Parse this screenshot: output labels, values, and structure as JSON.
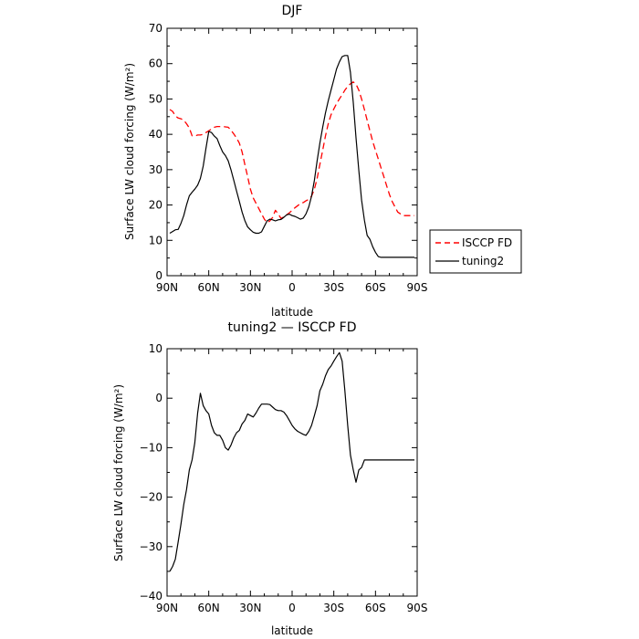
{
  "chart_data": [
    {
      "type": "line",
      "title": "DJF",
      "xlabel": "latitude",
      "ylabel": "Surface LW cloud forcing (W/m²)",
      "xlim": [
        90,
        -90
      ],
      "ylim": [
        0,
        70
      ],
      "xticks": [
        90,
        60,
        30,
        0,
        -30,
        -60,
        -90
      ],
      "xtick_labels": [
        "90N",
        "60N",
        "30N",
        "0",
        "30S",
        "60S",
        "90S"
      ],
      "yticks": [
        0,
        10,
        20,
        30,
        40,
        50,
        60,
        70
      ],
      "ytick_labels": [
        "0",
        "10",
        "20",
        "30",
        "40",
        "50",
        "60",
        "70"
      ],
      "grid": false,
      "legend_position": "outside-right",
      "series": [
        {
          "name": "ISCCP FD",
          "color": "#ff0000",
          "dash": "dashed",
          "x": [
            88,
            86,
            84,
            82,
            80,
            78,
            76,
            74,
            72,
            70,
            68,
            66,
            64,
            62,
            60,
            58,
            56,
            54,
            52,
            50,
            48,
            46,
            44,
            42,
            40,
            38,
            36,
            34,
            32,
            30,
            28,
            26,
            24,
            22,
            20,
            18,
            16,
            14,
            12,
            10,
            8,
            6,
            4,
            2,
            0,
            -2,
            -4,
            -6,
            -8,
            -10,
            -12,
            -14,
            -16,
            -18,
            -20,
            -22,
            -24,
            -26,
            -28,
            -30,
            -32,
            -34,
            -36,
            -38,
            -40,
            -42,
            -44,
            -46,
            -48,
            -50,
            -52,
            -54,
            -56,
            -58,
            -60,
            -62,
            -64,
            -66,
            -68,
            -70,
            -72,
            -74,
            -76,
            -78,
            -80,
            -82,
            -84,
            -86,
            -88
          ],
          "y": [
            47,
            46.5,
            45.2,
            44.6,
            44.4,
            44,
            43,
            41.8,
            39.6,
            39.5,
            39.8,
            39.8,
            40,
            40.5,
            41,
            41.5,
            42,
            42.2,
            42.2,
            42.2,
            42.1,
            42,
            41.2,
            40.1,
            39,
            37.5,
            35,
            31.5,
            28,
            24.5,
            22,
            20.5,
            19,
            17.5,
            16,
            15,
            15.5,
            16.5,
            18.5,
            17.5,
            16.2,
            16.6,
            17.2,
            17.8,
            18.5,
            19.2,
            19.8,
            20.4,
            20.7,
            21.2,
            21.6,
            22.5,
            24.5,
            27.5,
            31.5,
            35.5,
            39.5,
            43,
            45.5,
            47.2,
            48.7,
            50,
            51.2,
            52.5,
            53.6,
            54.3,
            54.8,
            54.2,
            52.5,
            50,
            47,
            44,
            41,
            38,
            35.5,
            33,
            30.5,
            28,
            25.5,
            23,
            21,
            19.5,
            18,
            17.5,
            17,
            17,
            17,
            17,
            17
          ]
        },
        {
          "name": "tuning2",
          "color": "#000000",
          "dash": "solid",
          "x": [
            88,
            86,
            84,
            82,
            80,
            78,
            76,
            74,
            72,
            70,
            68,
            66,
            64,
            62,
            60,
            58,
            56,
            54,
            52,
            50,
            48,
            46,
            44,
            42,
            40,
            38,
            36,
            34,
            32,
            30,
            28,
            26,
            24,
            22,
            20,
            18,
            16,
            14,
            12,
            10,
            8,
            6,
            4,
            2,
            0,
            -2,
            -4,
            -6,
            -8,
            -10,
            -12,
            -14,
            -16,
            -18,
            -20,
            -22,
            -24,
            -26,
            -28,
            -30,
            -32,
            -34,
            -36,
            -38,
            -40,
            -42,
            -44,
            -46,
            -48,
            -50,
            -52,
            -54,
            -56,
            -58,
            -60,
            -62,
            -64,
            -66,
            -68,
            -70,
            -72,
            -74,
            -76,
            -78,
            -80,
            -82,
            -84,
            -86,
            -88
          ],
          "y": [
            12,
            12.5,
            13,
            13.1,
            14.8,
            17,
            20,
            22.6,
            23.6,
            24.5,
            25.6,
            27.5,
            31,
            36,
            40.8,
            40.5,
            39.5,
            38.8,
            36.8,
            35,
            34,
            32.5,
            30,
            27,
            24,
            21,
            18,
            15.6,
            13.8,
            13,
            12.3,
            12,
            12,
            12.4,
            14,
            15.5,
            16,
            15.8,
            15.5,
            15.8,
            15.9,
            16.5,
            17.2,
            17.4,
            17,
            16.8,
            16.4,
            16,
            16.3,
            17.5,
            19.5,
            22.5,
            27,
            32.5,
            37.5,
            42,
            46,
            49.5,
            52.5,
            55.5,
            58.5,
            60.5,
            62,
            62.3,
            62.3,
            57.5,
            49,
            39,
            29.7,
            21.4,
            15.7,
            11.4,
            10.3,
            8.2,
            6.6,
            5.4,
            5.2,
            5.2,
            5.2,
            5.2,
            5.2,
            5.2,
            5.2,
            5.2,
            5.2,
            5.2,
            5.2,
            5.2,
            5.2
          ]
        }
      ]
    },
    {
      "type": "line",
      "title": "tuning2 — ISCCP FD",
      "xlabel": "latitude",
      "ylabel": "Surface LW cloud forcing (W/m²)",
      "xlim": [
        90,
        -90
      ],
      "ylim": [
        -40,
        10
      ],
      "xticks": [
        90,
        60,
        30,
        0,
        -30,
        -60,
        -90
      ],
      "xtick_labels": [
        "90N",
        "60N",
        "30N",
        "0",
        "30S",
        "60S",
        "90S"
      ],
      "yticks": [
        -40,
        -30,
        -20,
        -10,
        0,
        10
      ],
      "ytick_labels": [
        "−40",
        "−30",
        "−20",
        "−10",
        "0",
        "10"
      ],
      "grid": false,
      "series": [
        {
          "color": "#000000",
          "dash": "solid",
          "x": [
            88,
            86,
            84,
            82,
            80,
            78,
            76,
            74,
            72,
            70,
            68,
            66,
            64,
            62,
            60,
            58,
            56,
            54,
            52,
            50,
            48,
            46,
            44,
            42,
            40,
            38,
            36,
            34,
            32,
            30,
            28,
            26,
            24,
            22,
            20,
            18,
            16,
            14,
            12,
            10,
            8,
            6,
            4,
            2,
            0,
            -2,
            -4,
            -6,
            -8,
            -10,
            -12,
            -14,
            -16,
            -18,
            -20,
            -22,
            -24,
            -26,
            -28,
            -30,
            -32,
            -34,
            -36,
            -38,
            -40,
            -42,
            -44,
            -46,
            -48,
            -50,
            -52,
            -54,
            -56,
            -58,
            -60,
            -62,
            -64,
            -66,
            -68,
            -70,
            -72,
            -74,
            -76,
            -78,
            -80,
            -82,
            -84,
            -86,
            -88
          ],
          "y": [
            -35,
            -34,
            -32.5,
            -29,
            -25.5,
            -21.5,
            -18.5,
            -14.5,
            -12.5,
            -9,
            -3,
            1,
            -1.5,
            -2.5,
            -3.2,
            -5.5,
            -7,
            -7.5,
            -7.5,
            -8.5,
            -10,
            -10.5,
            -9.5,
            -8,
            -7,
            -6.5,
            -5.2,
            -4.5,
            -3.2,
            -3.5,
            -3.8,
            -3,
            -2,
            -1.2,
            -1.2,
            -1.2,
            -1.3,
            -1.8,
            -2.3,
            -2.5,
            -2.5,
            -2.8,
            -3.5,
            -4.5,
            -5.5,
            -6.2,
            -6.7,
            -7,
            -7.3,
            -7.5,
            -6.7,
            -5.5,
            -3.5,
            -1.5,
            1.5,
            2.8,
            4.5,
            5.8,
            6.5,
            7.5,
            8.4,
            9.2,
            7.5,
            1.5,
            -5.5,
            -11.5,
            -14.5,
            -17,
            -14.5,
            -14,
            -12.5,
            -12.5,
            -12.5,
            -12.5,
            -12.5,
            -12.5,
            -12.5,
            -12.5,
            -12.5,
            -12.5,
            -12.5,
            -12.5,
            -12.5,
            -12.5,
            -12.5,
            -12.5,
            -12.5,
            -12.5,
            -12.5
          ]
        }
      ]
    }
  ]
}
